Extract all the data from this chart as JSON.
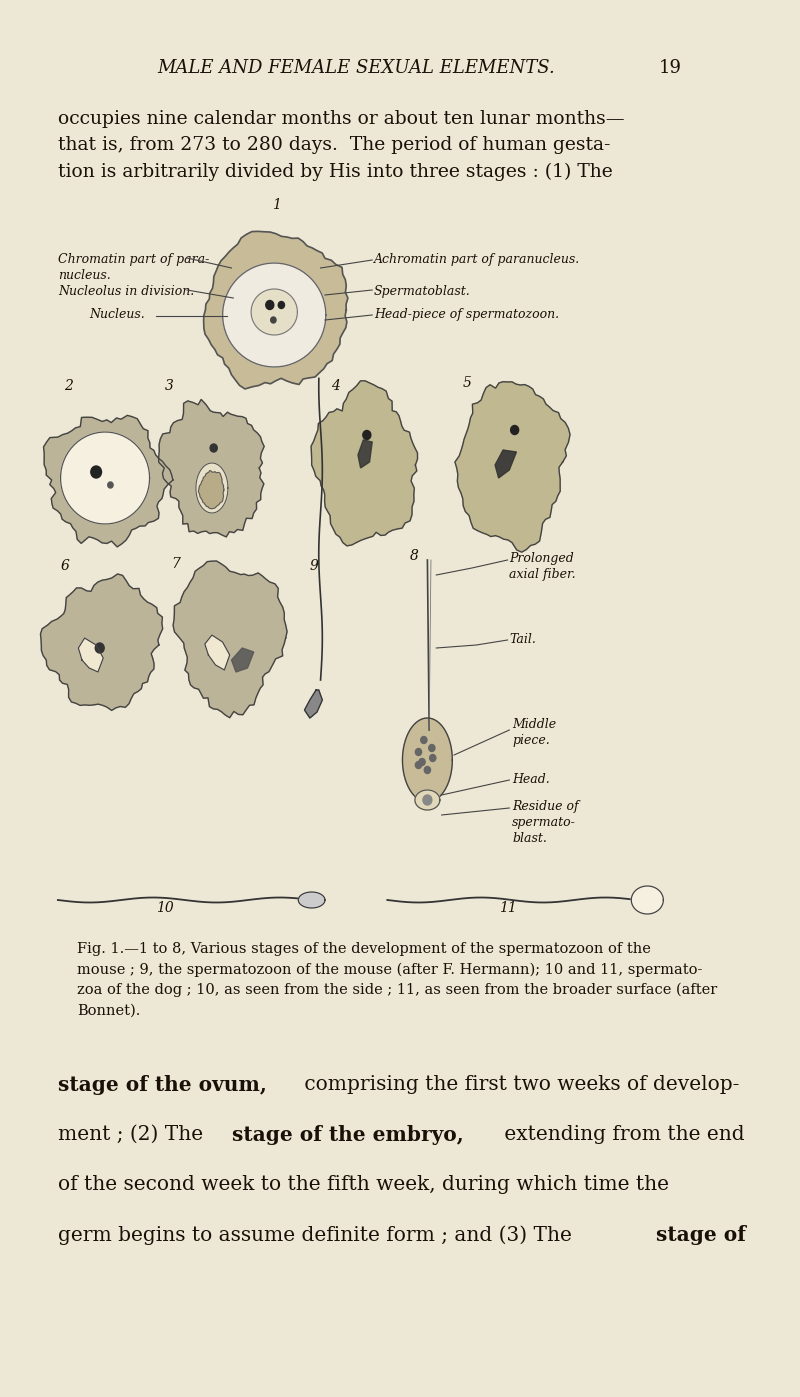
{
  "page_bg": "#ede8d5",
  "text_color": "#1a1008",
  "fig_width": 8.0,
  "fig_height": 13.97,
  "dpi": 100,
  "header_text": "MALE AND FEMALE SEXUAL ELEMENTS.",
  "header_pagenum": "19",
  "top_para": "occupies nine calendar months or about ten lunar months—\nthat is, from 273 to 280 days.  The period of human gesta-\ntion is arbitrarily divided by His into three stages : (1) The",
  "caption": "Fig. 1.—1 to 8, Various stages of the development of the spermatozoon of the\nmouse ; 9, the spermatozoon of the mouse (after F. Hermann); 10 and 11, spermato-\nzoa of the dog ; 10, as seen from the side ; 11, as seen from the broader surface (after\nBonnet).",
  "bottom_line1_normal": " comprising the first two weeks of develop-",
  "bottom_line1_bold": "stage of the ovum,",
  "bottom_line2_pre": "ment ; (2) The ",
  "bottom_line2_bold": "stage of the embryo,",
  "bottom_line2_post": " extending from the end",
  "bottom_line3": "of the second week to the fifth week, during which time the",
  "bottom_line4_pre": "germ begins to assume definite form ; and (3) The ",
  "bottom_line4_bold": "stage of"
}
